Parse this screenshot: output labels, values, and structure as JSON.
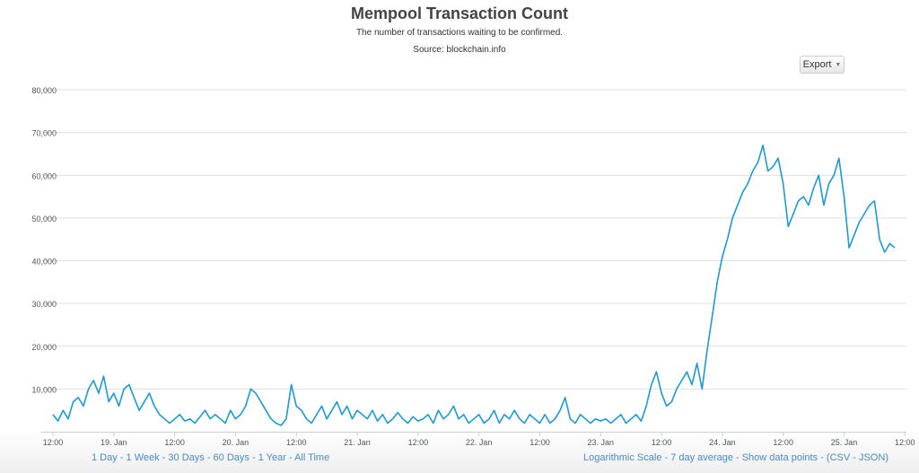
{
  "chart_data": {
    "type": "line",
    "title": "Mempool Transaction Count",
    "subtitle": "The number of transactions waiting to be confirmed.",
    "source": "Source: blockchain.info",
    "xlabel": "",
    "ylabel": "",
    "x_unit": "hours since 18 Jan 00:00",
    "xlim": [
      9.7,
      180.3
    ],
    "ylim": [
      0,
      80000
    ],
    "grid": true,
    "legend": "none",
    "color": "#1a9bd7",
    "y_ticks": [
      {
        "value": 10000,
        "label": "10,000"
      },
      {
        "value": 20000,
        "label": "20,000"
      },
      {
        "value": 30000,
        "label": "30,000"
      },
      {
        "value": 40000,
        "label": "40,000"
      },
      {
        "value": 50000,
        "label": "50,000"
      },
      {
        "value": 60000,
        "label": "60,000"
      },
      {
        "value": 70000,
        "label": "70,000"
      },
      {
        "value": 80000,
        "label": "80,000"
      }
    ],
    "x_ticks": [
      {
        "value": 12,
        "label": "12:00"
      },
      {
        "value": 24,
        "label": "19. Jan"
      },
      {
        "value": 36,
        "label": "12:00"
      },
      {
        "value": 48,
        "label": "20. Jan"
      },
      {
        "value": 60,
        "label": "12:00"
      },
      {
        "value": 72,
        "label": "21. Jan"
      },
      {
        "value": 84,
        "label": "12:00"
      },
      {
        "value": 96,
        "label": "22. Jan"
      },
      {
        "value": 108,
        "label": "12:00"
      },
      {
        "value": 120,
        "label": "23. Jan"
      },
      {
        "value": 132,
        "label": "12:00"
      },
      {
        "value": 144,
        "label": "24. Jan"
      },
      {
        "value": 156,
        "label": "12:00"
      },
      {
        "value": 168,
        "label": "25. Jan"
      },
      {
        "value": 180,
        "label": "12:00"
      }
    ],
    "x_start": 12,
    "x_step": 1,
    "values": [
      4000,
      2500,
      5000,
      3000,
      7000,
      8000,
      6000,
      10000,
      12000,
      9000,
      13000,
      7000,
      9000,
      6000,
      10000,
      11000,
      8000,
      5000,
      7000,
      9000,
      6000,
      4000,
      3000,
      2000,
      3000,
      4000,
      2500,
      3000,
      2000,
      3500,
      5000,
      3000,
      4000,
      3000,
      2000,
      5000,
      3000,
      4000,
      6000,
      10000,
      9000,
      7000,
      5000,
      3000,
      2000,
      1500,
      3000,
      11000,
      6000,
      5000,
      3000,
      2000,
      4000,
      6000,
      3000,
      5000,
      7000,
      4000,
      6000,
      3000,
      5000,
      4000,
      3000,
      5000,
      2500,
      4000,
      2000,
      3000,
      4500,
      3000,
      2000,
      3500,
      2500,
      3000,
      4000,
      2000,
      5000,
      3000,
      4000,
      6000,
      3000,
      4000,
      2000,
      3000,
      4000,
      2000,
      3000,
      5000,
      2000,
      4000,
      3000,
      5000,
      3000,
      2000,
      4000,
      3000,
      2000,
      4000,
      2000,
      3000,
      5000,
      8000,
      3000,
      2000,
      4000,
      3000,
      2000,
      3000,
      2500,
      3000,
      2000,
      3000,
      4000,
      2000,
      3000,
      4000,
      2500,
      6000,
      11000,
      14000,
      9000,
      6000,
      7000,
      10000,
      12000,
      14000,
      11000,
      16000,
      10000,
      19000,
      27000,
      35000,
      41000,
      45000,
      50000,
      53000,
      56000,
      58000,
      61000,
      63000,
      67000,
      61000,
      62000,
      64000,
      58000,
      48000,
      51000,
      54000,
      55000,
      53000,
      57000,
      60000,
      53000,
      58000,
      60000,
      64000,
      55000,
      43000,
      46000,
      49000,
      51000,
      53000,
      54000,
      45000,
      42000,
      44000,
      43000
    ]
  },
  "export_label": "Export",
  "links_left": [
    "1 Day",
    "1 Week",
    "30 Days",
    "60 Days",
    "1 Year",
    "All Time"
  ],
  "links_right": [
    "Logarithmic Scale",
    "7 day average",
    "Show data points"
  ],
  "links_right_paren": [
    "CSV",
    "JSON"
  ]
}
